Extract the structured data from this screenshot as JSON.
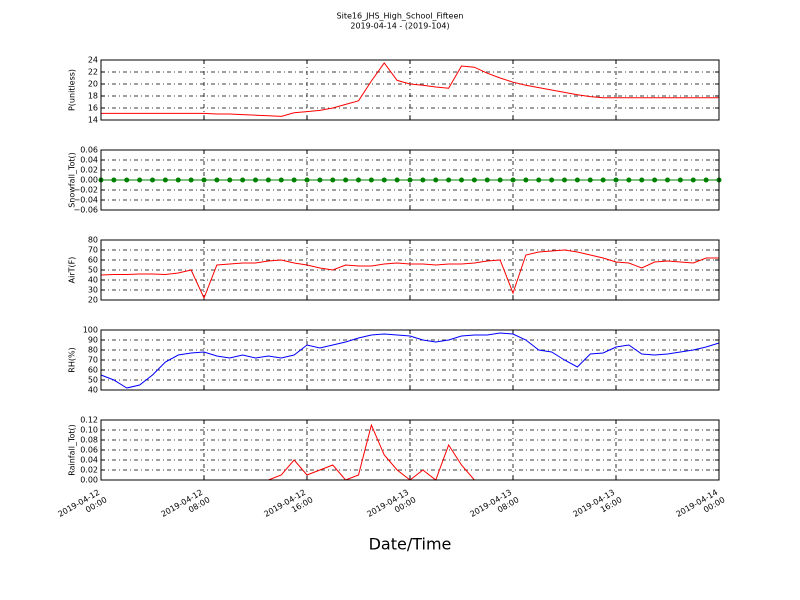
{
  "title": "Site16_JHS_High_School_Fifteen",
  "subtitle": "2019-04-14 - (2019-104)",
  "xlabel": "Date/Time",
  "xlim": [
    "2019-04-12 00:00",
    "2019-04-14 00:00"
  ],
  "xticks": [
    "2019-04-12 00:00",
    "2019-04-12 08:00",
    "2019-04-12 16:00",
    "2019-04-13 00:00",
    "2019-04-13 08:00",
    "2019-04-13 16:00",
    "2019-04-14 00:00"
  ],
  "x": [
    "2019-04-12 00:00",
    "2019-04-12 01:00",
    "2019-04-12 02:00",
    "2019-04-12 03:00",
    "2019-04-12 04:00",
    "2019-04-12 05:00",
    "2019-04-12 06:00",
    "2019-04-12 07:00",
    "2019-04-12 08:00",
    "2019-04-12 09:00",
    "2019-04-12 10:00",
    "2019-04-12 11:00",
    "2019-04-12 12:00",
    "2019-04-12 13:00",
    "2019-04-12 14:00",
    "2019-04-12 15:00",
    "2019-04-12 16:00",
    "2019-04-12 17:00",
    "2019-04-12 18:00",
    "2019-04-12 19:00",
    "2019-04-12 20:00",
    "2019-04-12 21:00",
    "2019-04-12 22:00",
    "2019-04-12 23:00",
    "2019-04-13 00:00",
    "2019-04-13 01:00",
    "2019-04-13 02:00",
    "2019-04-13 03:00",
    "2019-04-13 04:00",
    "2019-04-13 05:00",
    "2019-04-13 06:00",
    "2019-04-13 07:00",
    "2019-04-13 08:00",
    "2019-04-13 09:00",
    "2019-04-13 10:00",
    "2019-04-13 11:00",
    "2019-04-13 12:00",
    "2019-04-13 13:00",
    "2019-04-13 14:00",
    "2019-04-13 15:00",
    "2019-04-13 16:00",
    "2019-04-13 17:00",
    "2019-04-13 18:00",
    "2019-04-13 19:00",
    "2019-04-13 20:00",
    "2019-04-13 21:00",
    "2019-04-13 22:00",
    "2019-04-13 23:00",
    "2019-04-14 00:00"
  ],
  "chart_data": [
    {
      "type": "line",
      "ylabel": "P(unitless)",
      "ylim": [
        14,
        24
      ],
      "yticks": [
        14,
        16,
        18,
        20,
        22,
        24
      ],
      "grid": true,
      "color": "#ff0000",
      "values": [
        15.1,
        15.1,
        15.1,
        15.1,
        15.1,
        15.1,
        15.1,
        15.1,
        15.1,
        15.0,
        15.0,
        14.9,
        14.8,
        14.7,
        14.6,
        15.2,
        15.4,
        15.6,
        16.0,
        16.6,
        17.2,
        20.5,
        23.5,
        20.6,
        20.0,
        19.8,
        19.5,
        19.3,
        23.0,
        22.8,
        21.8,
        21.0,
        20.3,
        19.8,
        19.4,
        19.0,
        18.6,
        18.2,
        17.9,
        17.7,
        17.7,
        17.7,
        17.7,
        17.7,
        17.7,
        17.7,
        17.7,
        17.7,
        17.7
      ]
    },
    {
      "type": "line",
      "ylabel": "Snowfall_Tot()",
      "ylim": [
        -0.06,
        0.06
      ],
      "yticks": [
        {
          "value": -0.06,
          "label": "−0.06"
        },
        {
          "value": -0.04,
          "label": "−0.04"
        },
        {
          "value": -0.02,
          "label": "−0.02"
        },
        {
          "value": 0,
          "label": "0.00"
        },
        0.02,
        0.04,
        0.06
      ],
      "grid": true,
      "color": "#008000",
      "markers": true,
      "values": [
        0,
        0,
        0,
        0,
        0,
        0,
        0,
        0,
        0,
        0,
        0,
        0,
        0,
        0,
        0,
        0,
        0,
        0,
        0,
        0,
        0,
        0,
        0,
        0,
        0,
        0,
        0,
        0,
        0,
        0,
        0,
        0,
        0,
        0,
        0,
        0,
        0,
        0,
        0,
        0,
        0,
        0,
        0,
        0,
        0,
        0,
        0,
        0,
        0
      ]
    },
    {
      "type": "line",
      "ylabel": "AirT(F)",
      "ylim": [
        20,
        80
      ],
      "yticks": [
        20,
        30,
        40,
        50,
        60,
        70,
        80
      ],
      "grid": true,
      "color": "#ff0000",
      "values": [
        45,
        45.5,
        45.5,
        46,
        46,
        45.5,
        47,
        50,
        22,
        55,
        56,
        57,
        57,
        59,
        60,
        57,
        55,
        52,
        50,
        55,
        54,
        54,
        56,
        57,
        56,
        56,
        55,
        56,
        56,
        57,
        59,
        60,
        27,
        65,
        68,
        69,
        70,
        68,
        65,
        62,
        58,
        57,
        52,
        58,
        59,
        58,
        57,
        62,
        62
      ]
    },
    {
      "type": "line",
      "ylabel": "RH(%)",
      "ylim": [
        40,
        100
      ],
      "yticks": [
        40,
        50,
        60,
        70,
        80,
        90,
        100
      ],
      "grid": true,
      "color": "#0000ff",
      "values": [
        55,
        50,
        42,
        45,
        55,
        68,
        75,
        77,
        78,
        74,
        72,
        75,
        72,
        74,
        72,
        75,
        85,
        82,
        85,
        88,
        92,
        95,
        96,
        95,
        94,
        90,
        88,
        90,
        94,
        95,
        95,
        97,
        96,
        90,
        80,
        78,
        70,
        63,
        76,
        77,
        83,
        85,
        76,
        75,
        76,
        78,
        80,
        83,
        87
      ]
    },
    {
      "type": "line",
      "ylabel": "Rainfall_Tot()",
      "ylim": [
        0,
        0.12
      ],
      "yticks": [
        {
          "value": 0,
          "label": "0.00"
        },
        0.02,
        0.04,
        0.06,
        0.08,
        {
          "value": 0.1,
          "label": "0.10"
        },
        0.12
      ],
      "grid": true,
      "color": "#ff0000",
      "values": [
        0,
        0,
        0,
        0,
        0,
        0,
        0,
        0,
        0,
        0,
        0,
        0,
        0,
        0,
        0.01,
        0.04,
        0.01,
        0.02,
        0.03,
        0,
        0.01,
        0.11,
        0.05,
        0.02,
        0,
        0.02,
        0,
        0.07,
        0.03,
        0,
        0,
        0,
        0,
        0,
        0,
        0,
        0,
        0,
        0,
        0,
        0,
        0,
        0,
        0,
        0,
        0,
        0,
        0,
        0
      ]
    }
  ]
}
